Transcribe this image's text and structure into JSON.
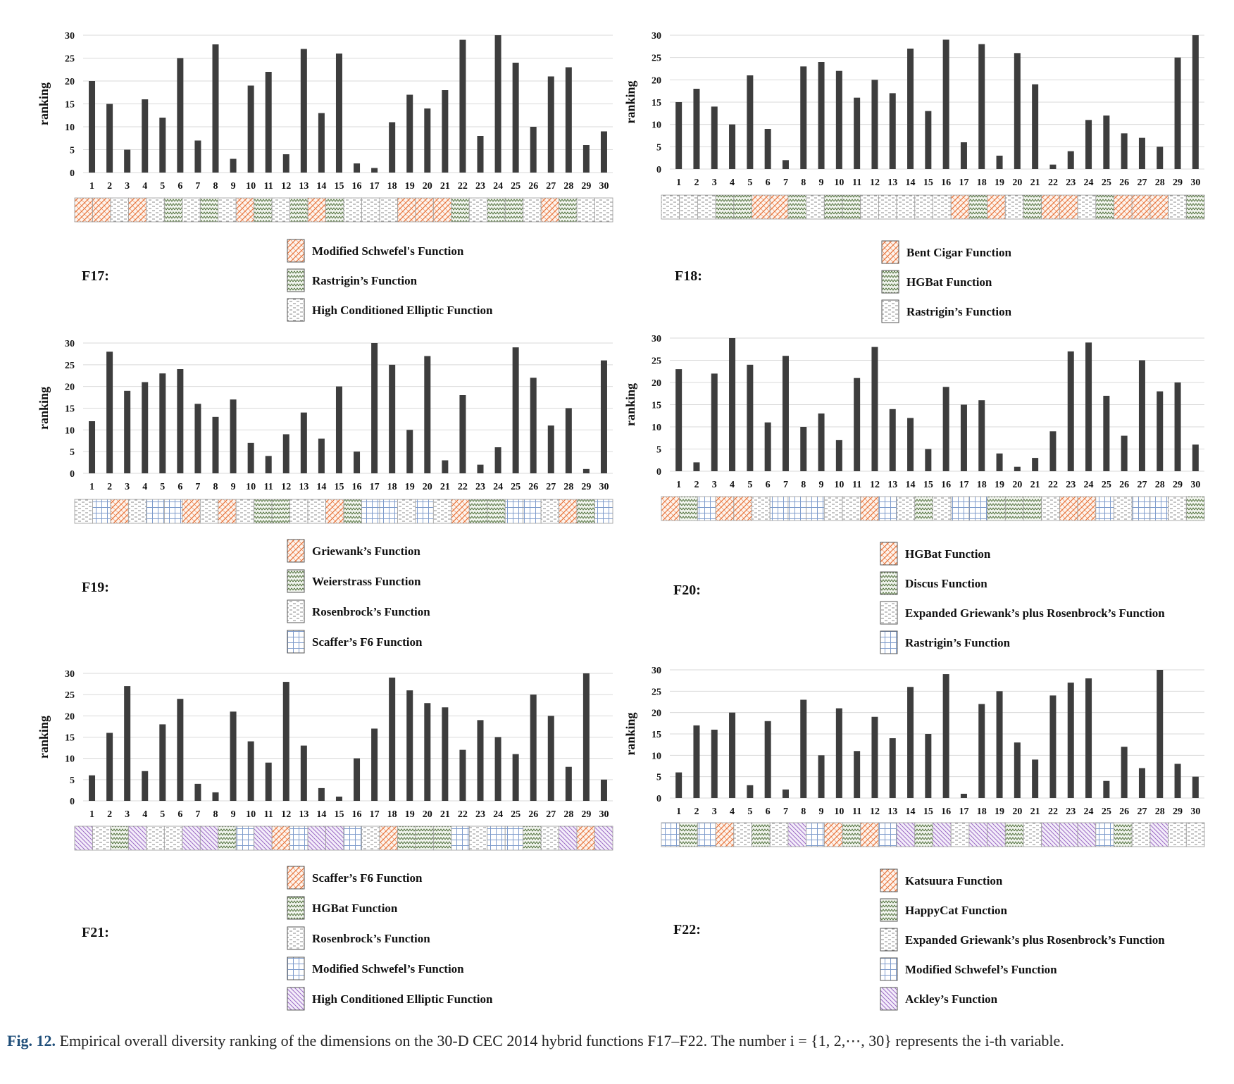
{
  "figure": {
    "caption_label": "Fig. 12.",
    "caption_text": " Empirical overall diversity ranking of the dimensions on the 30-D CEC 2014 hybrid functions F17–F22. The number i = {1, 2,⋯, 30} represents the i-th variable."
  },
  "pattern_colors": {
    "orange": "#e8743b",
    "green": "#4f6f3a",
    "gray": "#8a8a8a",
    "blue": "#7f9ccc",
    "purple": "#9b6ac4",
    "bar": "#3d3d3d"
  },
  "chart_data": [
    {
      "type": "bar",
      "title": "F17:",
      "ylabel": "ranking",
      "ylim": [
        0,
        30
      ],
      "yticks": [
        0,
        5,
        10,
        15,
        20,
        25,
        30
      ],
      "categories": [
        "1",
        "2",
        "3",
        "4",
        "5",
        "6",
        "7",
        "8",
        "9",
        "10",
        "11",
        "12",
        "13",
        "14",
        "15",
        "16",
        "17",
        "18",
        "19",
        "20",
        "21",
        "22",
        "23",
        "24",
        "25",
        "26",
        "27",
        "28",
        "29",
        "30"
      ],
      "values": [
        20,
        15,
        5,
        16,
        12,
        25,
        7,
        28,
        3,
        19,
        22,
        4,
        27,
        13,
        26,
        2,
        1,
        11,
        17,
        14,
        18,
        29,
        8,
        30,
        24,
        10,
        21,
        23,
        6,
        9
      ],
      "groups": [
        0,
        0,
        2,
        0,
        2,
        1,
        2,
        1,
        2,
        0,
        1,
        2,
        1,
        0,
        1,
        2,
        2,
        2,
        0,
        0,
        0,
        1,
        2,
        1,
        1,
        2,
        0,
        1,
        2,
        2
      ],
      "legend": [
        {
          "label": "Modified Schwefel's Function",
          "pattern": "orange"
        },
        {
          "label": "Rastrigin’s Function",
          "pattern": "green"
        },
        {
          "label": "High Conditioned Elliptic Function",
          "pattern": "gray"
        }
      ]
    },
    {
      "type": "bar",
      "title": "F18:",
      "ylabel": "ranking",
      "ylim": [
        0,
        30
      ],
      "yticks": [
        0,
        5,
        10,
        15,
        20,
        25,
        30
      ],
      "categories": [
        "1",
        "2",
        "3",
        "4",
        "5",
        "6",
        "7",
        "8",
        "9",
        "10",
        "11",
        "12",
        "13",
        "14",
        "15",
        "16",
        "17",
        "18",
        "19",
        "20",
        "21",
        "22",
        "23",
        "24",
        "25",
        "26",
        "27",
        "28",
        "29",
        "30"
      ],
      "values": [
        15,
        18,
        14,
        10,
        21,
        9,
        2,
        23,
        24,
        22,
        16,
        20,
        17,
        27,
        13,
        29,
        6,
        28,
        3,
        26,
        19,
        1,
        4,
        11,
        12,
        8,
        7,
        5,
        25,
        30
      ],
      "groups": [
        2,
        2,
        2,
        1,
        1,
        0,
        0,
        1,
        2,
        1,
        1,
        2,
        2,
        2,
        2,
        2,
        0,
        1,
        0,
        2,
        1,
        0,
        0,
        2,
        1,
        0,
        0,
        0,
        2,
        1
      ],
      "legend": [
        {
          "label": "Bent Cigar Function",
          "pattern": "orange"
        },
        {
          "label": "HGBat Function",
          "pattern": "green"
        },
        {
          "label": "Rastrigin’s Function",
          "pattern": "gray"
        }
      ]
    },
    {
      "type": "bar",
      "title": "F19:",
      "ylabel": "ranking",
      "ylim": [
        0,
        30
      ],
      "yticks": [
        0,
        5,
        10,
        15,
        20,
        25,
        30
      ],
      "categories": [
        "1",
        "2",
        "3",
        "4",
        "5",
        "6",
        "7",
        "8",
        "9",
        "10",
        "11",
        "12",
        "13",
        "14",
        "15",
        "16",
        "17",
        "18",
        "19",
        "20",
        "21",
        "22",
        "23",
        "24",
        "25",
        "26",
        "27",
        "28",
        "29",
        "30"
      ],
      "values": [
        12,
        28,
        19,
        21,
        23,
        24,
        16,
        13,
        17,
        7,
        4,
        9,
        14,
        8,
        20,
        5,
        30,
        25,
        10,
        27,
        3,
        18,
        2,
        6,
        29,
        22,
        11,
        15,
        1,
        26
      ],
      "groups": [
        2,
        3,
        0,
        2,
        3,
        3,
        0,
        2,
        0,
        2,
        1,
        1,
        2,
        2,
        0,
        1,
        3,
        3,
        2,
        3,
        2,
        0,
        1,
        1,
        3,
        3,
        2,
        0,
        1,
        3
      ],
      "legend": [
        {
          "label": "Griewank’s Function",
          "pattern": "orange"
        },
        {
          "label": "Weierstrass Function",
          "pattern": "green"
        },
        {
          "label": "Rosenbrock’s Function",
          "pattern": "gray"
        },
        {
          "label": "Scaffer’s F6 Function",
          "pattern": "blue"
        }
      ]
    },
    {
      "type": "bar",
      "title": "F20:",
      "ylabel": "ranking",
      "ylim": [
        0,
        30
      ],
      "yticks": [
        0,
        5,
        10,
        15,
        20,
        25,
        30
      ],
      "categories": [
        "1",
        "2",
        "3",
        "4",
        "5",
        "6",
        "7",
        "8",
        "9",
        "10",
        "11",
        "12",
        "13",
        "14",
        "15",
        "16",
        "17",
        "18",
        "19",
        "20",
        "21",
        "22",
        "23",
        "24",
        "25",
        "26",
        "27",
        "28",
        "29",
        "30"
      ],
      "values": [
        23,
        2,
        22,
        30,
        24,
        11,
        26,
        10,
        13,
        7,
        21,
        28,
        14,
        12,
        5,
        19,
        15,
        16,
        4,
        1,
        3,
        9,
        27,
        29,
        17,
        8,
        25,
        18,
        20,
        6
      ],
      "groups": [
        0,
        1,
        3,
        0,
        0,
        2,
        3,
        3,
        3,
        2,
        2,
        0,
        3,
        2,
        1,
        2,
        3,
        3,
        1,
        1,
        1,
        2,
        0,
        0,
        3,
        2,
        3,
        3,
        2,
        1
      ],
      "legend": [
        {
          "label": "HGBat Function",
          "pattern": "orange"
        },
        {
          "label": "Discus Function",
          "pattern": "green"
        },
        {
          "label": "Expanded Griewank’s plus Rosenbrock’s Function",
          "pattern": "gray"
        },
        {
          "label": "Rastrigin’s Function",
          "pattern": "blue"
        }
      ]
    },
    {
      "type": "bar",
      "title": "F21:",
      "ylabel": "ranking",
      "ylim": [
        0,
        30
      ],
      "yticks": [
        0,
        5,
        10,
        15,
        20,
        25,
        30
      ],
      "categories": [
        "1",
        "2",
        "3",
        "4",
        "5",
        "6",
        "7",
        "8",
        "9",
        "10",
        "11",
        "12",
        "13",
        "14",
        "15",
        "16",
        "17",
        "18",
        "19",
        "20",
        "21",
        "22",
        "23",
        "24",
        "25",
        "26",
        "27",
        "28",
        "29",
        "30"
      ],
      "values": [
        6,
        16,
        27,
        7,
        18,
        24,
        4,
        2,
        21,
        14,
        9,
        28,
        13,
        3,
        1,
        10,
        17,
        29,
        26,
        23,
        22,
        12,
        19,
        15,
        11,
        25,
        20,
        8,
        30,
        5
      ],
      "groups": [
        4,
        2,
        1,
        4,
        2,
        2,
        4,
        4,
        1,
        3,
        4,
        0,
        3,
        4,
        4,
        3,
        2,
        0,
        1,
        1,
        1,
        3,
        2,
        3,
        3,
        1,
        2,
        4,
        0,
        4
      ],
      "legend": [
        {
          "label": "Scaffer’s F6 Function",
          "pattern": "orange"
        },
        {
          "label": "HGBat Function",
          "pattern": "green"
        },
        {
          "label": "Rosenbrock’s Function",
          "pattern": "gray"
        },
        {
          "label": "Modified Schwefel’s Function",
          "pattern": "blue"
        },
        {
          "label": "High Conditioned Elliptic Function",
          "pattern": "purple"
        }
      ]
    },
    {
      "type": "bar",
      "title": "F22:",
      "ylabel": "ranking",
      "ylim": [
        0,
        30
      ],
      "yticks": [
        0,
        5,
        10,
        15,
        20,
        25,
        30
      ],
      "categories": [
        "1",
        "2",
        "3",
        "4",
        "5",
        "6",
        "7",
        "8",
        "9",
        "10",
        "11",
        "12",
        "13",
        "14",
        "15",
        "16",
        "17",
        "18",
        "19",
        "20",
        "21",
        "22",
        "23",
        "24",
        "25",
        "26",
        "27",
        "28",
        "29",
        "30"
      ],
      "values": [
        6,
        17,
        16,
        20,
        3,
        18,
        2,
        23,
        10,
        21,
        11,
        19,
        14,
        26,
        15,
        29,
        1,
        22,
        25,
        13,
        9,
        24,
        27,
        28,
        4,
        12,
        7,
        30,
        8,
        5
      ],
      "groups": [
        3,
        1,
        3,
        0,
        2,
        1,
        2,
        4,
        3,
        0,
        1,
        0,
        3,
        4,
        1,
        4,
        2,
        4,
        4,
        1,
        2,
        4,
        4,
        4,
        3,
        1,
        2,
        4,
        2,
        2
      ],
      "legend": [
        {
          "label": "Katsuura Function",
          "pattern": "orange"
        },
        {
          "label": "HappyCat Function",
          "pattern": "green"
        },
        {
          "label": "Expanded Griewank’s plus Rosenbrock’s Function",
          "pattern": "gray"
        },
        {
          "label": "Modified Schwefel’s Function",
          "pattern": "blue"
        },
        {
          "label": "Ackley’s Function",
          "pattern": "purple"
        }
      ]
    }
  ]
}
